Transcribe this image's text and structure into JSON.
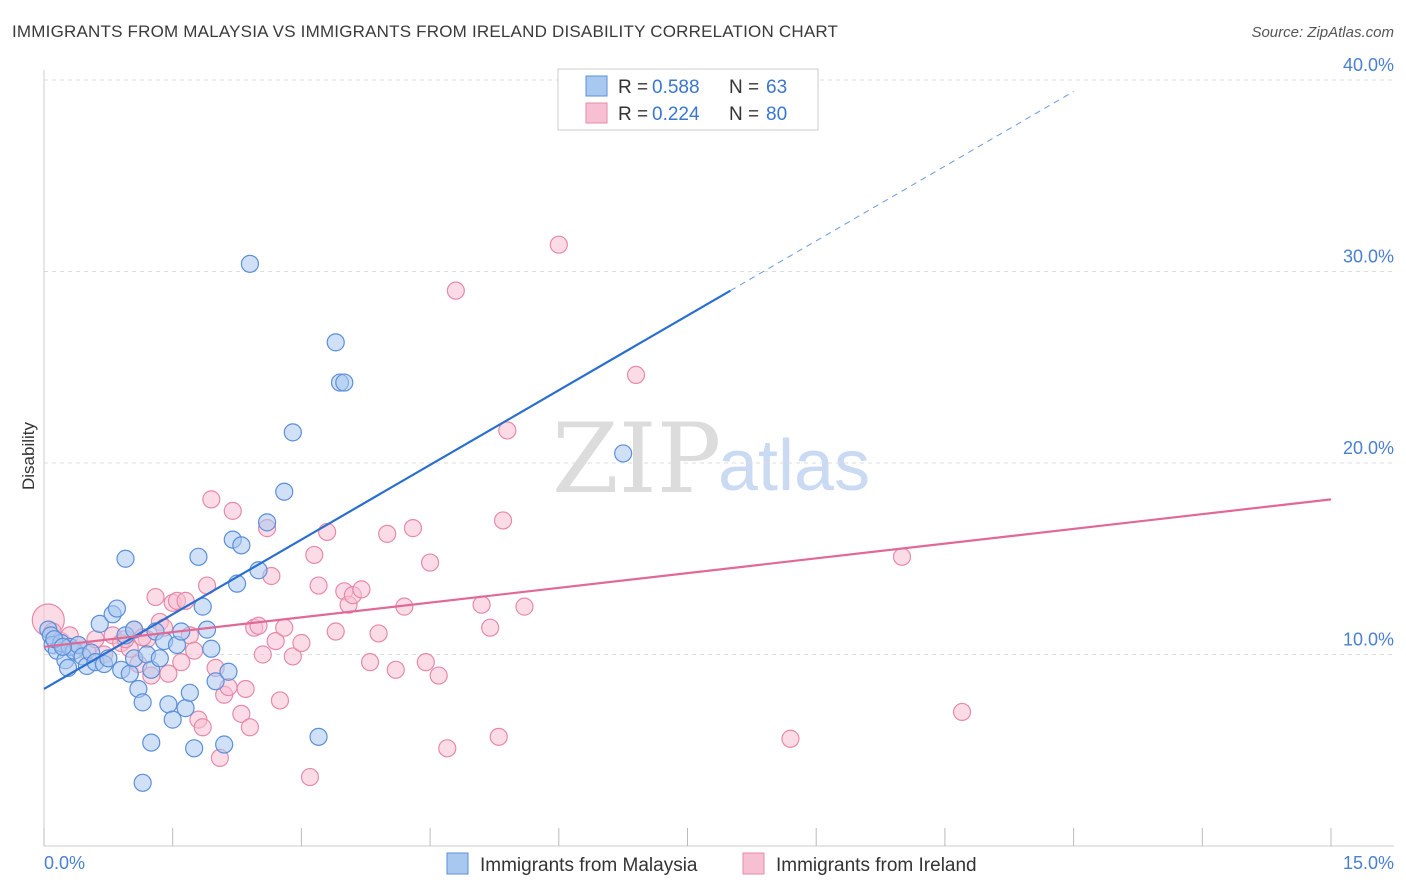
{
  "header": {
    "title": "IMMIGRANTS FROM MALAYSIA VS IMMIGRANTS FROM IRELAND DISABILITY CORRELATION CHART",
    "source": "Source: ZipAtlas.com"
  },
  "watermark": {
    "zip": "ZIP",
    "atlas": "atlas"
  },
  "legend": {
    "series": [
      {
        "r_label": "R =",
        "r_value": "0.588",
        "n_label": "N =",
        "n_value": "63"
      },
      {
        "r_label": "R =",
        "r_value": "0.224",
        "n_label": "N =",
        "n_value": "80"
      }
    ]
  },
  "colors": {
    "malaysia_fill": "#a9c8f0",
    "malaysia_stroke": "#5b8fd9",
    "malaysia_line": "#2a6fcf",
    "ireland_fill": "#f7c0d2",
    "ireland_stroke": "#e58aa9",
    "ireland_line": "#e06996",
    "grid": "#dddddd",
    "axis_text": "#4a7fcf"
  },
  "chart_data": {
    "type": "scatter",
    "title": "IMMIGRANTS FROM MALAYSIA VS IMMIGRANTS FROM IRELAND DISABILITY CORRELATION CHART",
    "xlabel": "",
    "ylabel": "Disability",
    "xlim": [
      0,
      15
    ],
    "ylim": [
      0,
      40
    ],
    "x_tick_labels": [
      "0.0%",
      "15.0%"
    ],
    "y_ticks": [
      10,
      20,
      30,
      40
    ],
    "y_tick_labels": [
      "10.0%",
      "20.0%",
      "30.0%",
      "40.0%"
    ],
    "grid": true,
    "series": [
      {
        "name": "Immigrants from Malaysia",
        "r": 0.588,
        "n": 63,
        "trend": {
          "x0": 0,
          "y0": 8.2,
          "x1": 8.0,
          "y1": 29.0,
          "dashed_to_x": 12.0,
          "dashed_to_y": 39.4
        },
        "points": [
          [
            0.05,
            11.3
          ],
          [
            0.08,
            11.0
          ],
          [
            0.1,
            10.5
          ],
          [
            0.15,
            10.2
          ],
          [
            0.2,
            10.6
          ],
          [
            0.25,
            9.7
          ],
          [
            0.28,
            9.3
          ],
          [
            0.3,
            10.4
          ],
          [
            0.35,
            10.2
          ],
          [
            0.4,
            10.5
          ],
          [
            0.45,
            9.9
          ],
          [
            0.5,
            9.4
          ],
          [
            0.55,
            10.1
          ],
          [
            0.6,
            9.6
          ],
          [
            0.65,
            11.6
          ],
          [
            0.7,
            9.5
          ],
          [
            0.75,
            9.8
          ],
          [
            0.8,
            12.1
          ],
          [
            0.85,
            12.4
          ],
          [
            0.9,
            9.2
          ],
          [
            0.95,
            11.0
          ],
          [
            1.0,
            9.0
          ],
          [
            1.05,
            9.8
          ],
          [
            1.1,
            8.2
          ],
          [
            1.15,
            7.5
          ],
          [
            1.2,
            10.0
          ],
          [
            1.25,
            9.2
          ],
          [
            1.3,
            11.2
          ],
          [
            1.35,
            9.8
          ],
          [
            1.4,
            10.7
          ],
          [
            1.45,
            7.4
          ],
          [
            1.5,
            6.6
          ],
          [
            1.55,
            10.5
          ],
          [
            1.6,
            11.2
          ],
          [
            1.65,
            7.2
          ],
          [
            1.7,
            8.0
          ],
          [
            1.75,
            5.1
          ],
          [
            1.8,
            15.1
          ],
          [
            1.9,
            11.3
          ],
          [
            1.95,
            10.3
          ],
          [
            2.0,
            8.6
          ],
          [
            2.1,
            5.3
          ],
          [
            2.2,
            16.0
          ],
          [
            2.25,
            13.7
          ],
          [
            2.3,
            15.7
          ],
          [
            2.4,
            30.4
          ],
          [
            2.5,
            14.4
          ],
          [
            2.6,
            16.9
          ],
          [
            2.8,
            18.5
          ],
          [
            2.9,
            21.6
          ],
          [
            3.2,
            5.7
          ],
          [
            3.4,
            26.3
          ],
          [
            3.45,
            24.2
          ],
          [
            3.5,
            24.2
          ],
          [
            0.95,
            15.0
          ],
          [
            1.85,
            12.5
          ],
          [
            1.05,
            11.3
          ],
          [
            0.12,
            10.8
          ],
          [
            0.22,
            10.4
          ],
          [
            1.15,
            3.3
          ],
          [
            1.25,
            5.4
          ],
          [
            2.15,
            9.1
          ],
          [
            6.75,
            20.5
          ]
        ]
      },
      {
        "name": "Immigrants from Ireland",
        "r": 0.224,
        "n": 80,
        "trend": {
          "x0": 0,
          "y0": 10.4,
          "x1": 15.0,
          "y1": 18.1
        },
        "points": [
          [
            0.05,
            11.8
          ],
          [
            0.1,
            11.2
          ],
          [
            0.2,
            10.7
          ],
          [
            0.3,
            11.0
          ],
          [
            0.4,
            10.5
          ],
          [
            0.5,
            10.2
          ],
          [
            0.6,
            10.8
          ],
          [
            0.7,
            10.0
          ],
          [
            0.8,
            11.0
          ],
          [
            0.9,
            10.6
          ],
          [
            1.0,
            10.3
          ],
          [
            1.05,
            11.3
          ],
          [
            1.1,
            9.5
          ],
          [
            1.2,
            10.8
          ],
          [
            1.3,
            13.0
          ],
          [
            1.35,
            11.7
          ],
          [
            1.4,
            11.4
          ],
          [
            1.45,
            9.0
          ],
          [
            1.5,
            12.7
          ],
          [
            1.55,
            12.8
          ],
          [
            1.6,
            9.6
          ],
          [
            1.7,
            11.0
          ],
          [
            1.75,
            10.2
          ],
          [
            1.8,
            6.6
          ],
          [
            1.85,
            6.2
          ],
          [
            1.9,
            13.6
          ],
          [
            1.95,
            18.1
          ],
          [
            2.0,
            9.3
          ],
          [
            2.05,
            4.6
          ],
          [
            2.1,
            7.9
          ],
          [
            2.2,
            17.5
          ],
          [
            2.3,
            6.9
          ],
          [
            2.35,
            8.2
          ],
          [
            2.4,
            6.2
          ],
          [
            2.45,
            11.4
          ],
          [
            2.5,
            11.5
          ],
          [
            2.6,
            16.6
          ],
          [
            2.65,
            14.1
          ],
          [
            2.7,
            10.7
          ],
          [
            2.75,
            7.6
          ],
          [
            2.8,
            11.4
          ],
          [
            2.9,
            9.9
          ],
          [
            3.0,
            10.6
          ],
          [
            3.1,
            3.6
          ],
          [
            3.15,
            15.2
          ],
          [
            3.3,
            16.4
          ],
          [
            3.4,
            11.2
          ],
          [
            3.5,
            13.3
          ],
          [
            3.55,
            12.6
          ],
          [
            3.6,
            13.1
          ],
          [
            3.7,
            13.4
          ],
          [
            3.8,
            9.6
          ],
          [
            3.9,
            11.1
          ],
          [
            4.0,
            16.3
          ],
          [
            4.1,
            9.2
          ],
          [
            4.2,
            12.5
          ],
          [
            4.3,
            16.6
          ],
          [
            4.5,
            14.8
          ],
          [
            4.6,
            8.9
          ],
          [
            4.7,
            5.1
          ],
          [
            4.8,
            29.0
          ],
          [
            5.1,
            12.6
          ],
          [
            5.2,
            11.4
          ],
          [
            5.3,
            5.7
          ],
          [
            5.4,
            21.7
          ],
          [
            5.6,
            12.5
          ],
          [
            5.35,
            17.0
          ],
          [
            6.0,
            31.4
          ],
          [
            6.9,
            24.6
          ],
          [
            8.7,
            5.6
          ],
          [
            10.0,
            15.1
          ],
          [
            10.7,
            7.0
          ],
          [
            2.55,
            10.0
          ],
          [
            1.65,
            12.8
          ],
          [
            0.95,
            10.8
          ],
          [
            1.25,
            8.9
          ],
          [
            3.2,
            13.6
          ],
          [
            2.15,
            8.3
          ],
          [
            4.45,
            9.6
          ],
          [
            1.15,
            10.9
          ]
        ]
      }
    ]
  }
}
